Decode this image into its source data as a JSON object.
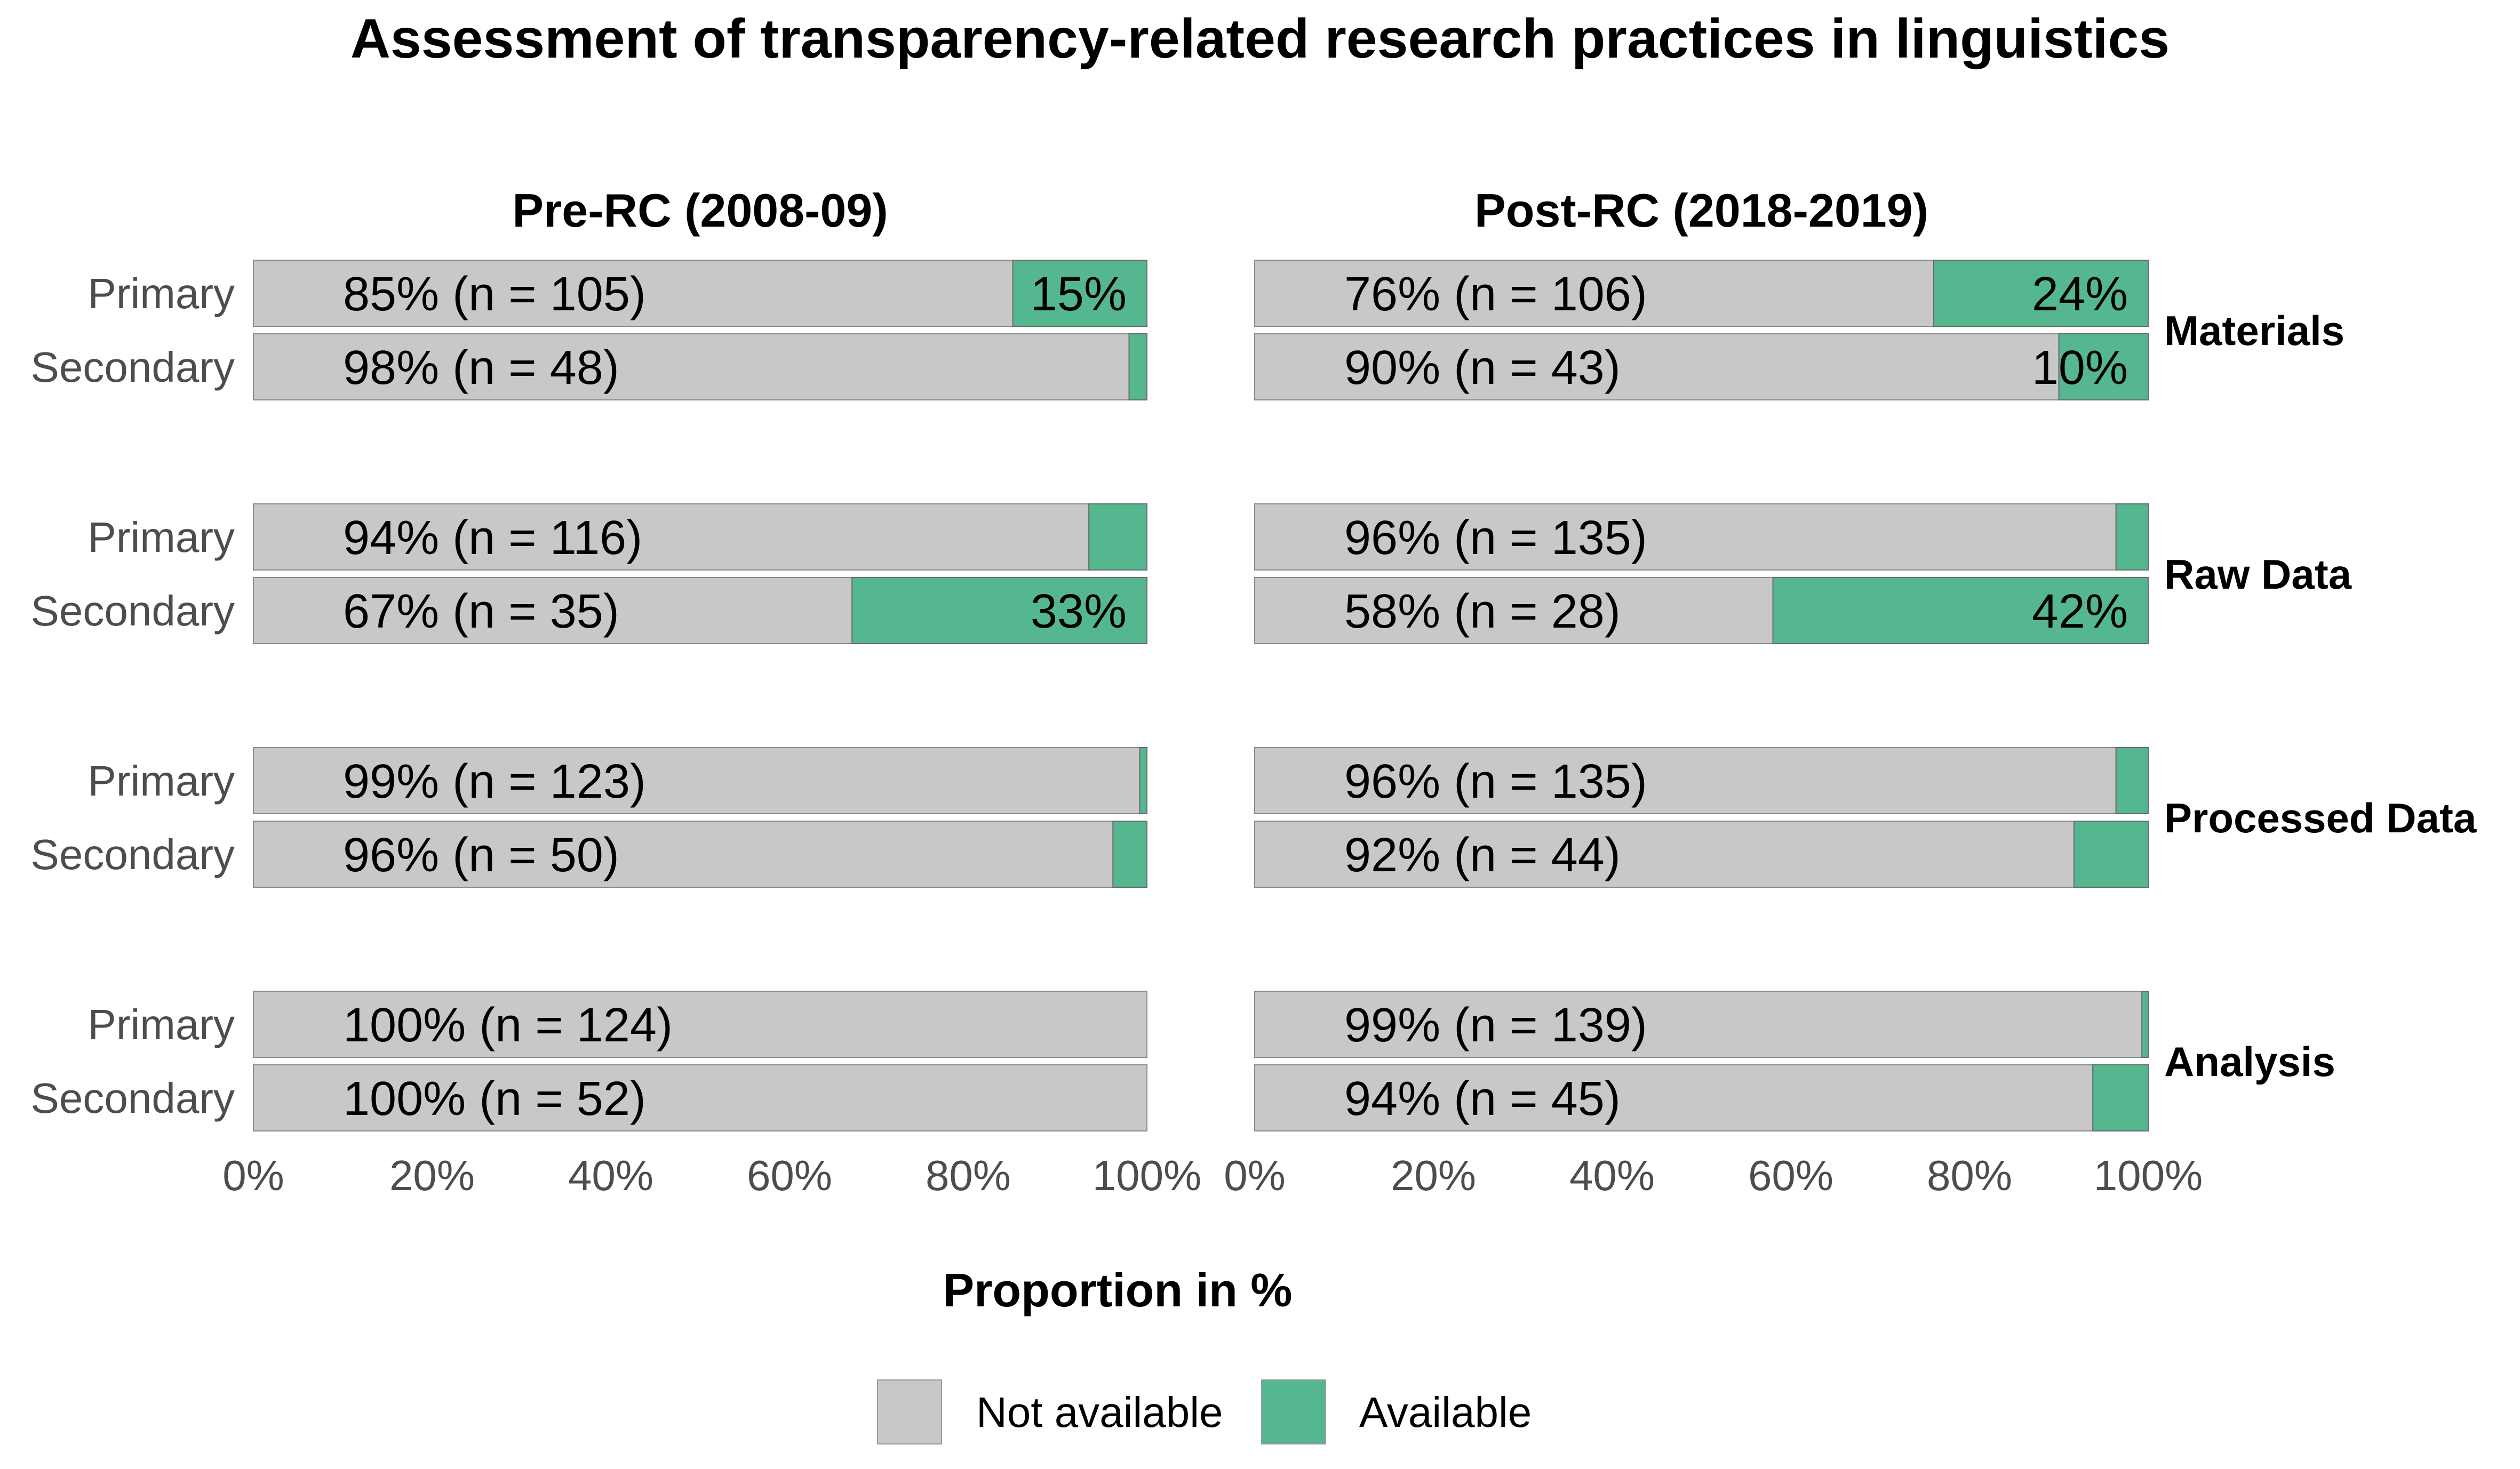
{
  "chart_data": {
    "type": "bar",
    "orientation": "horizontal",
    "stacked": true,
    "title": "Assessment of transparency-related research practices in linguistics",
    "xlabel": "Proportion in %",
    "ylabel": "",
    "xlim": [
      0,
      100
    ],
    "x_ticks": [
      "0%",
      "20%",
      "40%",
      "60%",
      "80%",
      "100%"
    ],
    "row_labels": [
      "Primary",
      "Secondary"
    ],
    "facets": [
      "Materials",
      "Raw Data",
      "Processed Data",
      "Analysis"
    ],
    "panels": [
      {
        "title": "Pre-RC (2008-09)",
        "groups": [
          {
            "facet": "Materials",
            "rows": [
              {
                "row": "Primary",
                "not_available": 85,
                "available": 15,
                "label": "85% (n = 105)",
                "available_label": "15%"
              },
              {
                "row": "Secondary",
                "not_available": 98,
                "available": 2,
                "label": "98% (n = 48)",
                "available_label": ""
              }
            ]
          },
          {
            "facet": "Raw Data",
            "rows": [
              {
                "row": "Primary",
                "not_available": 93.5,
                "available": 6.5,
                "label": "94% (n = 116)",
                "available_label": ""
              },
              {
                "row": "Secondary",
                "not_available": 67,
                "available": 33,
                "label": "67% (n = 35)",
                "available_label": "33%"
              }
            ]
          },
          {
            "facet": "Processed Data",
            "rows": [
              {
                "row": "Primary",
                "not_available": 99.2,
                "available": 0.8,
                "label": "99% (n = 123)",
                "available_label": ""
              },
              {
                "row": "Secondary",
                "not_available": 96.2,
                "available": 3.8,
                "label": "96% (n = 50)",
                "available_label": ""
              }
            ]
          },
          {
            "facet": "Analysis",
            "rows": [
              {
                "row": "Primary",
                "not_available": 100,
                "available": 0,
                "label": "100% (n = 124)",
                "available_label": ""
              },
              {
                "row": "Secondary",
                "not_available": 100,
                "available": 0,
                "label": "100% (n = 52)",
                "available_label": ""
              }
            ]
          }
        ]
      },
      {
        "title": "Post-RC (2018-2019)",
        "groups": [
          {
            "facet": "Materials",
            "rows": [
              {
                "row": "Primary",
                "not_available": 76,
                "available": 24,
                "label": "76% (n = 106)",
                "available_label": "24%"
              },
              {
                "row": "Secondary",
                "not_available": 90,
                "available": 10,
                "label": "90% (n = 43)",
                "available_label": "10%"
              }
            ]
          },
          {
            "facet": "Raw Data",
            "rows": [
              {
                "row": "Primary",
                "not_available": 96.4,
                "available": 3.6,
                "label": "96% (n = 135)",
                "available_label": ""
              },
              {
                "row": "Secondary",
                "not_available": 58,
                "available": 42,
                "label": "58% (n = 28)",
                "available_label": "42%"
              }
            ]
          },
          {
            "facet": "Processed Data",
            "rows": [
              {
                "row": "Primary",
                "not_available": 96.4,
                "available": 3.6,
                "label": "96% (n = 135)",
                "available_label": ""
              },
              {
                "row": "Secondary",
                "not_available": 91.7,
                "available": 8.3,
                "label": "92% (n = 44)",
                "available_label": ""
              }
            ]
          },
          {
            "facet": "Analysis",
            "rows": [
              {
                "row": "Primary",
                "not_available": 99.3,
                "available": 0.7,
                "label": "99% (n = 139)",
                "available_label": ""
              },
              {
                "row": "Secondary",
                "not_available": 93.8,
                "available": 6.2,
                "label": "94% (n = 45)",
                "available_label": ""
              }
            ]
          }
        ]
      }
    ],
    "legend": {
      "placement": "bottom",
      "items": [
        {
          "name": "Not available",
          "color": "#c8c8c8"
        },
        {
          "name": "Available",
          "color": "#55b78f"
        }
      ]
    },
    "colors": {
      "not_available": "#c8c8c8",
      "available": "#55b78f",
      "text": "#000000",
      "axis_text": "#4d4d4d"
    },
    "grid": false
  }
}
